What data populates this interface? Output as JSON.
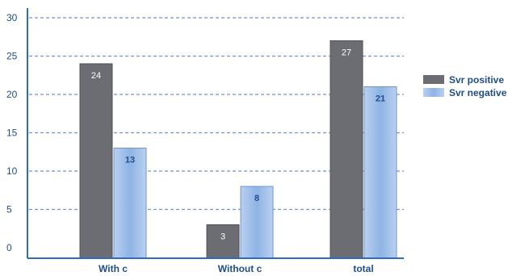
{
  "chart_data": {
    "type": "bar",
    "categories": [
      "With c",
      "Without c",
      "total"
    ],
    "series": [
      {
        "name": "Svr positive",
        "values": [
          24,
          3,
          27
        ],
        "color": "#6b6d72"
      },
      {
        "name": "Svr negative",
        "values": [
          13,
          8,
          21
        ],
        "color": "#8fb3e3"
      }
    ],
    "y_ticks": [
      "0",
      "5",
      "10",
      "15",
      "20",
      "25",
      "30"
    ],
    "ylim": [
      0,
      30
    ],
    "grid": "horizontal-dashed",
    "legend": "right",
    "axis_color": "#2f6bbf",
    "grid_color": "#6f95cf"
  }
}
